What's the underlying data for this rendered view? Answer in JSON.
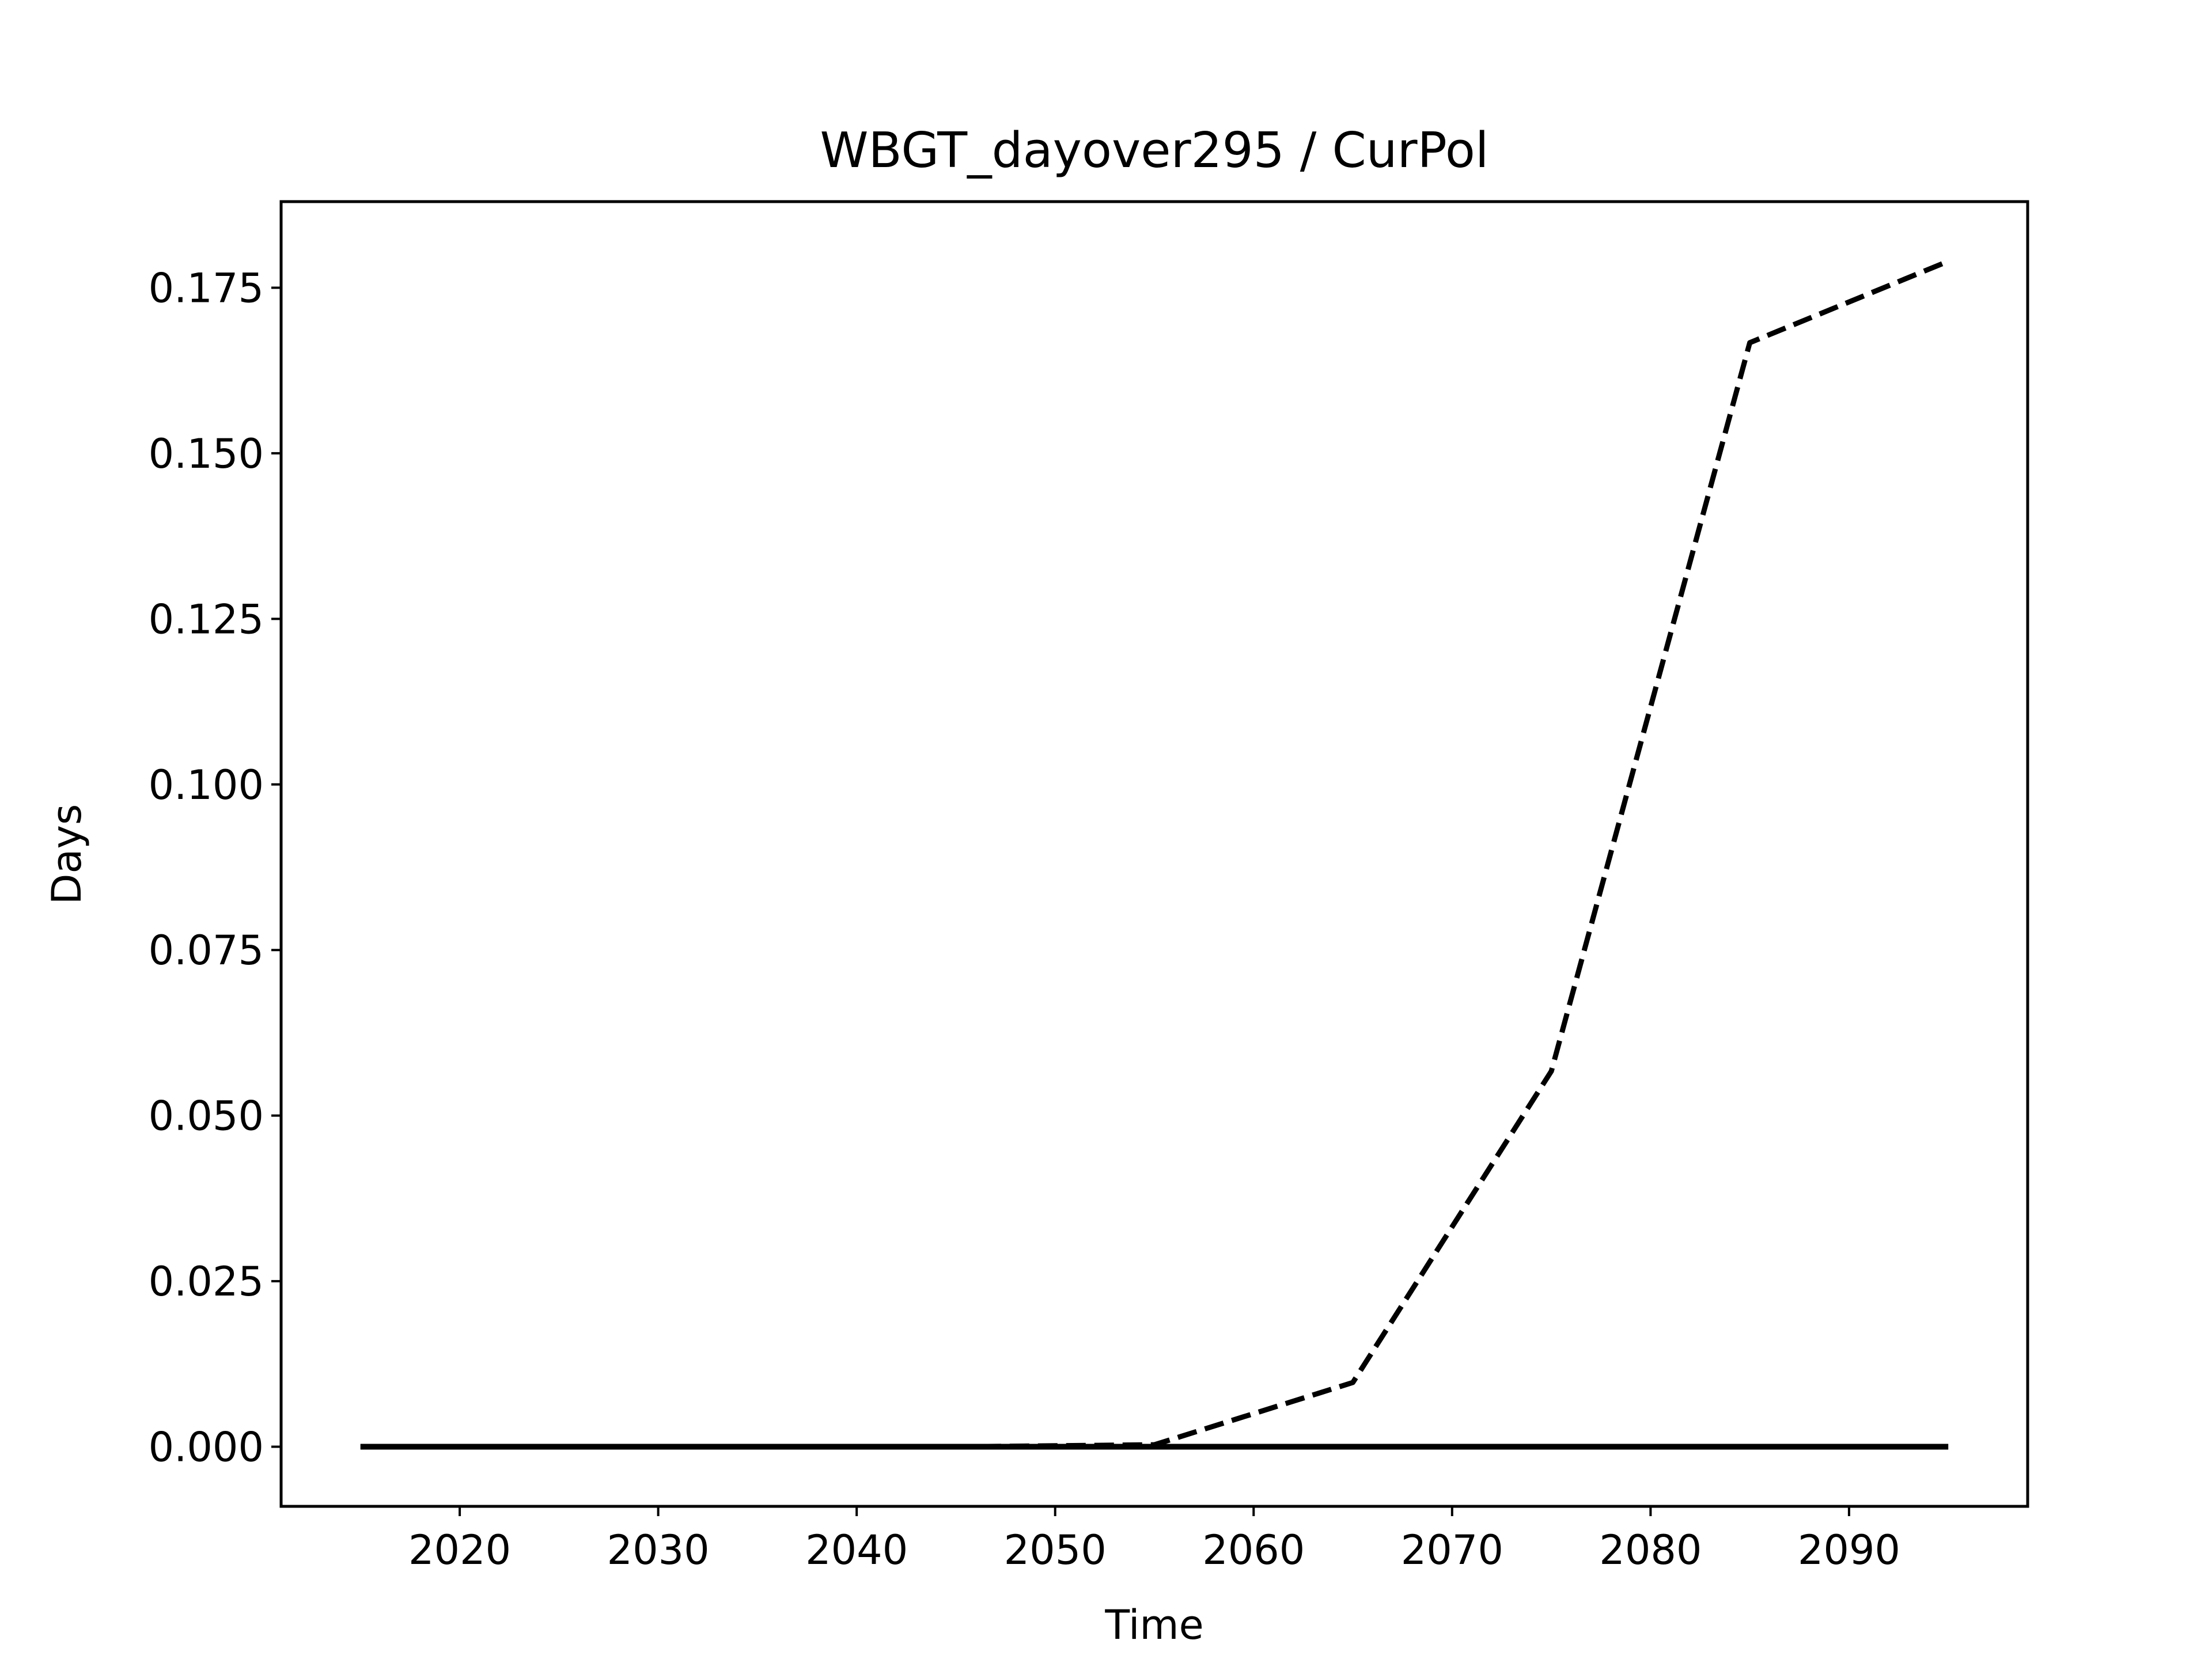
{
  "chart_data": {
    "type": "line",
    "title": "WBGT_dayover295 / CurPol",
    "xlabel": "Time",
    "ylabel": "Days",
    "xlim": [
      2011,
      2099
    ],
    "ylim": [
      -0.009,
      0.188
    ],
    "xticks": [
      2020,
      2030,
      2040,
      2050,
      2060,
      2070,
      2080,
      2090
    ],
    "yticks": [
      "0.000",
      "0.025",
      "0.050",
      "0.075",
      "0.100",
      "0.125",
      "0.150",
      "0.175"
    ],
    "grid": false,
    "x": [
      2015,
      2025,
      2035,
      2045,
      2055,
      2065,
      2075,
      2085,
      2095
    ],
    "series": [
      {
        "style": "dashed",
        "color": "#000000",
        "values": [
          0.0,
          0.0,
          0.0,
          0.0,
          0.0003,
          0.0097,
          0.0567,
          0.1667,
          0.179
        ]
      },
      {
        "style": "solid",
        "color": "#000000",
        "values": [
          0.0,
          0.0,
          0.0,
          0.0,
          0.0,
          0.0,
          0.0,
          0.0,
          0.0
        ]
      }
    ]
  }
}
